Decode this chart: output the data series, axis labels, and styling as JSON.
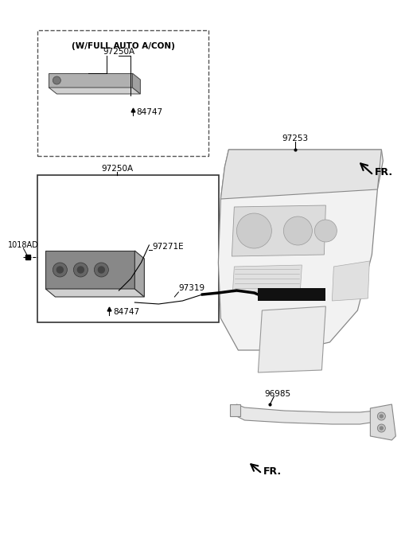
{
  "bg_color": "#ffffff",
  "label_fontsize": 7.5,
  "parts": {
    "box1_label": "(W/FULL AUTO A/CON)",
    "lbl_97250A": "97250A",
    "lbl_84747": "84747",
    "lbl_97271E": "97271E",
    "lbl_97319": "97319",
    "lbl_1018AD": "1018AD",
    "lbl_97253": "97253",
    "lbl_96985": "96985",
    "lbl_FR": "FR."
  },
  "colors": {
    "panel_dark": "#909090",
    "panel_mid": "#b0b0b0",
    "panel_light": "#d0d0d0",
    "dash_fill": "#f0f0f0",
    "dash_edge": "#888888",
    "black": "#000000",
    "white": "#ffffff",
    "connector": "#222222"
  }
}
